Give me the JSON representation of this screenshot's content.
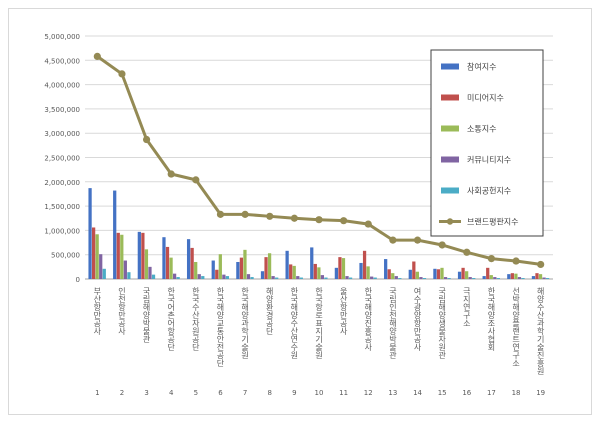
{
  "chart_data": {
    "type": "bar",
    "title": "",
    "xlabel": "",
    "ylabel": "",
    "ylim": [
      0,
      5000000
    ],
    "yticks": [
      0,
      500000,
      1000000,
      1500000,
      2000000,
      2500000,
      3000000,
      3500000,
      4000000,
      4500000,
      5000000
    ],
    "ytick_labels": [
      "0",
      "500,000",
      "1,000,000",
      "1,500,000",
      "2,000,000",
      "2,500,000",
      "3,000,000",
      "3,500,000",
      "4,000,000",
      "4,500,000",
      "5,000,000"
    ],
    "grid": "horizontal",
    "legend_position": "right",
    "categories": [
      "부산항만공사",
      "인천항만공사",
      "국립해양박물관",
      "한국어촌어항공단",
      "한국수산자원공단",
      "한국해양교통안전공단",
      "한국해양과학기술원",
      "해양환경공단",
      "한국해양수산연수원",
      "한국항로표지기술원",
      "울산항만공사",
      "한국해양진흥공사",
      "국립인천해양박물관",
      "여수광양항만공사",
      "국립해양생물자원관",
      "극지연구소",
      "한국해양조사협회",
      "선박해양플랜트연구소",
      "해양수산과학기술진흥원"
    ],
    "category_numbers": [
      "1",
      "2",
      "3",
      "4",
      "5",
      "6",
      "7",
      "8",
      "9",
      "10",
      "11",
      "12",
      "13",
      "14",
      "15",
      "16",
      "17",
      "18",
      "19"
    ],
    "series": [
      {
        "name": "참여지수",
        "kind": "bar",
        "color": "#4472c4",
        "values": [
          1870000,
          1820000,
          970000,
          860000,
          820000,
          380000,
          350000,
          160000,
          580000,
          650000,
          230000,
          330000,
          410000,
          190000,
          210000,
          150000,
          60000,
          100000,
          60000
        ]
      },
      {
        "name": "미디어지수",
        "kind": "bar",
        "color": "#c0504d",
        "values": [
          1060000,
          950000,
          950000,
          660000,
          640000,
          190000,
          440000,
          450000,
          300000,
          310000,
          450000,
          580000,
          200000,
          360000,
          200000,
          230000,
          230000,
          120000,
          120000
        ]
      },
      {
        "name": "소통지수",
        "kind": "bar",
        "color": "#9bbb59",
        "values": [
          920000,
          910000,
          610000,
          440000,
          350000,
          510000,
          600000,
          530000,
          270000,
          240000,
          430000,
          260000,
          120000,
          150000,
          230000,
          160000,
          80000,
          110000,
          100000
        ]
      },
      {
        "name": "커뮤니티지수",
        "kind": "bar",
        "color": "#8064a2",
        "values": [
          510000,
          380000,
          250000,
          110000,
          100000,
          90000,
          100000,
          60000,
          60000,
          80000,
          60000,
          50000,
          60000,
          40000,
          40000,
          40000,
          40000,
          40000,
          30000
        ]
      },
      {
        "name": "사회공헌지수",
        "kind": "bar",
        "color": "#4bacc6",
        "values": [
          210000,
          140000,
          90000,
          40000,
          60000,
          60000,
          40000,
          30000,
          30000,
          30000,
          30000,
          30000,
          20000,
          20000,
          20000,
          20000,
          20000,
          20000,
          20000
        ]
      },
      {
        "name": "브랜드평판지수",
        "kind": "line",
        "color": "#948a54",
        "values": [
          4580000,
          4220000,
          2870000,
          2160000,
          2040000,
          1330000,
          1330000,
          1290000,
          1250000,
          1220000,
          1200000,
          1130000,
          800000,
          800000,
          700000,
          550000,
          420000,
          370000,
          300000
        ]
      }
    ]
  }
}
